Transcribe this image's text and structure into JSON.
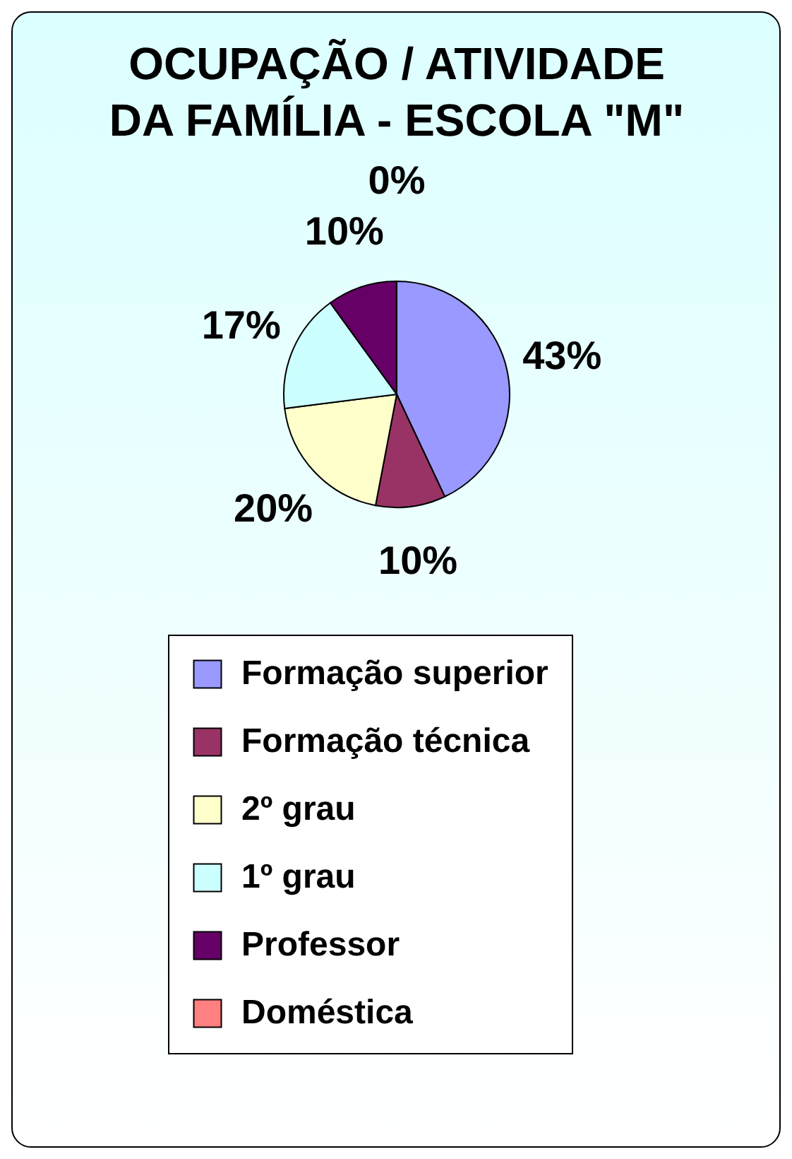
{
  "chart_data": {
    "type": "pie",
    "title": "OCUPAÇÃO / ATIVIDADE\nDA FAMÍLIA - ESCOLA \"M\"",
    "categories": [
      "Formação superior",
      "Formação técnica",
      "2º grau",
      "1º grau",
      "Professor",
      "Doméstica"
    ],
    "values": [
      43,
      10,
      20,
      17,
      10,
      0
    ],
    "value_labels": [
      "43%",
      "10%",
      "20%",
      "17%",
      "10%",
      "0%"
    ],
    "colors": [
      "#9999ff",
      "#993366",
      "#ffffcc",
      "#ccffff",
      "#660066",
      "#ff8080"
    ],
    "legend": "bottom"
  }
}
